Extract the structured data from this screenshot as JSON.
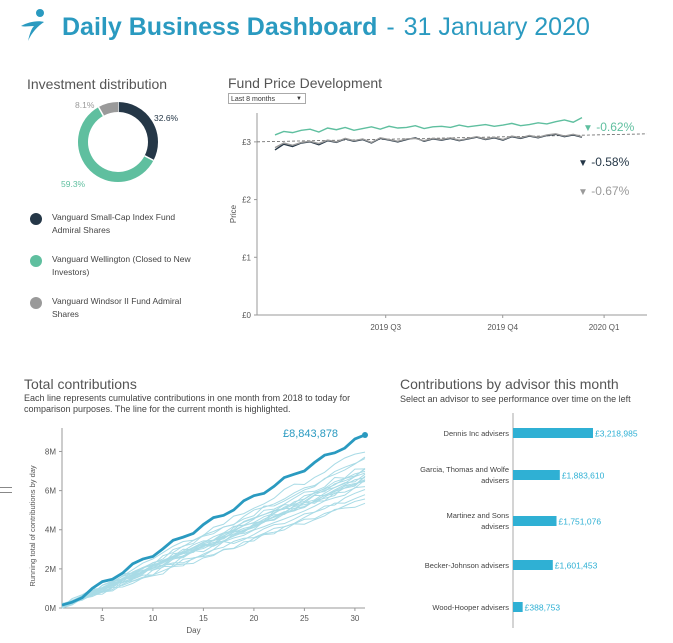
{
  "header": {
    "title_bold": "Daily Business Dashboard",
    "separator": "-",
    "date": "31 January 2020",
    "accent": "#2a9ac0"
  },
  "investment": {
    "title": "Investment distribution",
    "legend": [
      {
        "label_line1": "Vanguard Small-Cap Index Fund",
        "label_line2": "Admiral Shares",
        "color": "#253747"
      },
      {
        "label_line1": "Vanguard Wellington (Closed to New",
        "label_line2": "Investors)",
        "color": "#5fbf9f"
      },
      {
        "label_line1": "Vanguard Windsor II Fund Admiral",
        "label_line2": "Shares",
        "color": "#9a9a9a"
      }
    ]
  },
  "fund_price": {
    "title": "Fund Price Development",
    "dropdown_value": "Last 8 months",
    "pct_labels": [
      {
        "text": "-0.62%",
        "color": "#5fbf9f",
        "arrow": "▼"
      },
      {
        "text": "-0.58%",
        "color": "#253747",
        "arrow": "▼"
      },
      {
        "text": "-0.67%",
        "color": "#9a9a9a",
        "arrow": "▼"
      }
    ]
  },
  "total_contrib": {
    "title": "Total contributions",
    "subtitle_line1": "Each line represents cumulative contributions in one month from 2018 to today for",
    "subtitle_line2": "comparison purposes. The line for the current month is highlighted.",
    "end_label": "£8,843,878"
  },
  "advisor": {
    "title": "Contributions by advisor this month",
    "subtitle": "Select an advisor to see performance over time on the left"
  },
  "chart_data": [
    {
      "type": "pie",
      "name": "donut",
      "slices": [
        {
          "label": "Vanguard Small-Cap Index Fund Admiral Shares",
          "value": 32.6,
          "text": "32.6%",
          "color": "#253747"
        },
        {
          "label": "Vanguard Wellington (Closed to New Investors)",
          "value": 59.3,
          "text": "59.3%",
          "color": "#5fbf9f"
        },
        {
          "label": "Vanguard Windsor II Fund Admiral Shares",
          "value": 8.1,
          "text": "8.1%",
          "color": "#9a9a9a"
        }
      ]
    },
    {
      "type": "line",
      "name": "fund-price",
      "ylabel": "Price",
      "yticks": [
        "£0",
        "£1",
        "£2",
        "£3"
      ],
      "ylim": [
        0,
        3.5
      ],
      "xticks": [
        "2019 Q3",
        "2019 Q4",
        "2020 Q1"
      ],
      "reference_value": 3.0,
      "series": [
        {
          "color": "#5fbf9f",
          "values": [
            3.12,
            3.18,
            3.16,
            3.2,
            3.22,
            3.17,
            3.24,
            3.21,
            3.25,
            3.2,
            3.23,
            3.26,
            3.22,
            3.27,
            3.24,
            3.25,
            3.28,
            3.23,
            3.26,
            3.27,
            3.25,
            3.29,
            3.26,
            3.28,
            3.3,
            3.27,
            3.29,
            3.32,
            3.28,
            3.3,
            3.33,
            3.31,
            3.35,
            3.38,
            3.34,
            3.42
          ]
        },
        {
          "color": "#253747",
          "values": [
            2.86,
            2.96,
            2.92,
            2.98,
            3.0,
            2.95,
            3.02,
            2.99,
            3.05,
            3.01,
            3.04,
            2.98,
            3.06,
            3.03,
            3.0,
            3.04,
            3.07,
            3.01,
            3.05,
            3.03,
            3.06,
            3.02,
            3.05,
            3.08,
            3.04,
            3.07,
            3.03,
            3.09,
            3.06,
            3.1,
            3.07,
            3.11,
            3.13,
            3.09,
            3.12,
            3.08
          ]
        },
        {
          "color": "#9a9a9a",
          "values": [
            2.9,
            2.98,
            2.94,
            2.99,
            3.01,
            2.97,
            3.03,
            3.0,
            3.06,
            3.02,
            3.05,
            2.99,
            3.07,
            3.04,
            3.01,
            3.05,
            3.06,
            3.02,
            3.06,
            3.04,
            3.07,
            3.03,
            3.06,
            3.09,
            3.05,
            3.08,
            3.04,
            3.1,
            3.07,
            3.11,
            3.08,
            3.12,
            3.14,
            3.1,
            3.13,
            3.09
          ]
        }
      ]
    },
    {
      "type": "line",
      "name": "total-contributions",
      "xlabel": "Day",
      "ylabel": "Running total of contributions by day",
      "xticks": [
        5,
        10,
        15,
        20,
        25,
        30
      ],
      "xlim": [
        1,
        31
      ],
      "yticks": [
        "0M",
        "2M",
        "4M",
        "6M",
        "8M"
      ],
      "ylim": [
        0,
        9200000
      ],
      "highlight": {
        "color": "#2a9ac0",
        "end_value": 8843878
      },
      "background_series_count": 20,
      "background_color": "#a9dbe6"
    },
    {
      "type": "bar",
      "name": "advisor-bars",
      "color": "#2fb0d4",
      "categories": [
        "Dennis Inc advisers",
        "Garcia, Thomas and Wolfe advisers",
        "Martinez and Sons advisers",
        "Becker-Johnson advisers",
        "Wood-Hooper advisers"
      ],
      "values": [
        3218985,
        1883610,
        1751076,
        1601453,
        388753
      ],
      "value_labels": [
        "£3,218,985",
        "£1,883,610",
        "£1,751,076",
        "£1,601,453",
        "£388,753"
      ]
    }
  ]
}
